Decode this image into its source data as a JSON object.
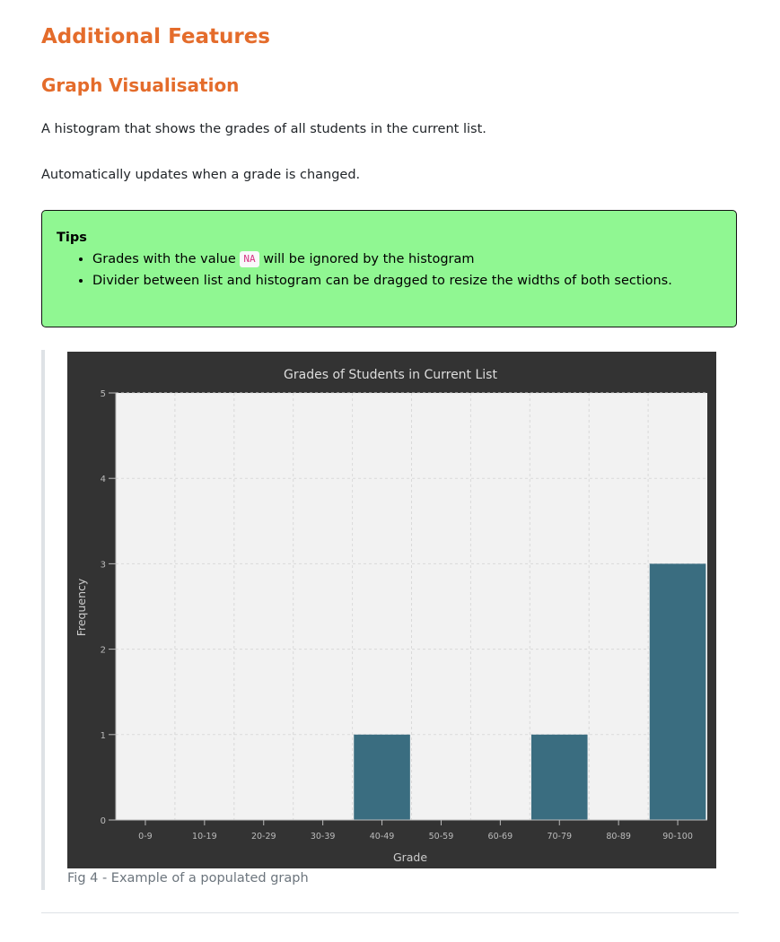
{
  "heading": "Additional Features",
  "subheading": "Graph Visualisation",
  "paragraphs": [
    "A histogram that shows the grades of all students in the current list.",
    "Automatically updates when a grade is changed."
  ],
  "tips": {
    "title": "Tips",
    "item1": {
      "before": "Grades with the value ",
      "code": "NA",
      "after": " will be ignored by the histogram"
    },
    "item2": "Divider between list and histogram can be dragged to resize the widths of both sections."
  },
  "figure": {
    "caption": "Fig 4 - Example of a populated graph"
  },
  "colors": {
    "heading": "#e46c2b",
    "tips_background": "#90f792",
    "chart_background": "#333333",
    "plot_background": "#f2f2f2",
    "bar": "#3a6d80"
  },
  "chart_data": {
    "type": "bar",
    "title": "Grades of Students in Current List",
    "xlabel": "Grade",
    "ylabel": "Frequency",
    "categories": [
      "0-9",
      "10-19",
      "20-29",
      "30-39",
      "40-49",
      "50-59",
      "60-69",
      "70-79",
      "80-89",
      "90-100"
    ],
    "values": [
      0,
      0,
      0,
      0,
      1,
      0,
      0,
      1,
      0,
      3
    ],
    "ylim": [
      0,
      5
    ],
    "yticks": [
      0,
      1,
      2,
      3,
      4,
      5
    ],
    "grid": true,
    "legend": "none"
  }
}
